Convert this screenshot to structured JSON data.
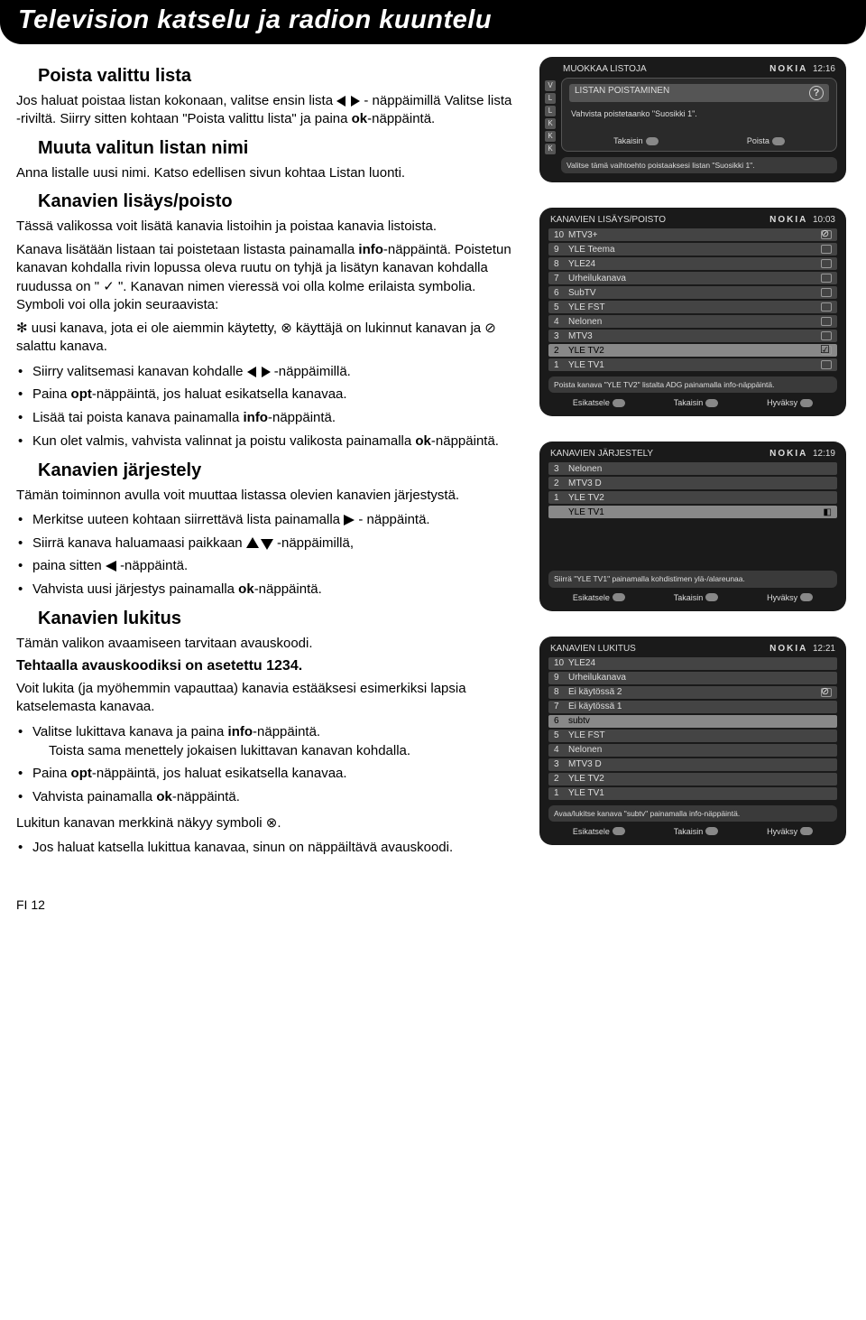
{
  "header": {
    "title": "Television katselu ja radion kuuntelu"
  },
  "s1": {
    "title": "Poista valittu lista",
    "p1a": "Jos haluat poistaa listan kokonaan, valitse ensin lista ",
    "p1b": " - näppäimillä Valitse lista -riviltä. Siirry sitten kohtaan \"Poista valittu lista\" ja paina ",
    "p1c": "-näppäintä."
  },
  "s2": {
    "title": "Muuta valitun listan nimi",
    "p1": "Anna listalle uusi nimi. Katso edellisen sivun kohtaa Listan luonti."
  },
  "s3": {
    "title": "Kanavien lisäys/poisto",
    "p1": "Tässä valikossa voit lisätä kanavia listoihin ja poistaa kanavia listoista.",
    "p2a": "Kanava lisätään listaan tai poistetaan listasta painamalla ",
    "p2b": "-näppäintä. Poistetun kanavan kohdalla rivin lopussa oleva ruutu on tyhjä ja lisätyn kanavan kohdalla ruudussa on \" ✓ \". Kanavan nimen vieressä voi olla kolme erilaista symbolia. Symboli voi olla jokin seuraavista:",
    "p3": "✻ uusi kanava, jota ei ole aiemmin käytetty, ⊗ käyttäjä on lukinnut kanavan ja ⊘ salattu kanava.",
    "b1a": "Siirry valitsemasi kanavan kohdalle ",
    "b1b": " -näppäimillä.",
    "b2a": "Paina ",
    "b2b": "-näppäintä, jos haluat esikatsella kanavaa.",
    "b3a": "Lisää tai poista kanava painamalla ",
    "b3b": "-näppäintä.",
    "b4a": "Kun olet valmis, vahvista valinnat ja poistu valikosta painamalla ",
    "b4b": "-näppäintä."
  },
  "s4": {
    "title": "Kanavien järjestely",
    "p1": "Tämän toiminnon avulla voit muuttaa listassa olevien kanavien järjestystä.",
    "b1a": "Merkitse uuteen kohtaan siirrettävä lista painamalla ",
    "b1b": " - näppäintä.",
    "b2a": "Siirrä kanava haluamaasi paikkaan ",
    "b2b": " -näppäimillä,",
    "b3a": "paina sitten ",
    "b3b": " -näppäintä.",
    "b4a": "Vahvista uusi järjestys painamalla ",
    "b4b": "-näppäintä."
  },
  "s5": {
    "title": "Kanavien lukitus",
    "p1": "Tämän valikon avaamiseen tarvitaan avauskoodi.",
    "factory": "Tehtaalla avauskoodiksi on asetettu 1234.",
    "p2": "Voit lukita (ja myöhemmin vapauttaa) kanavia estääksesi esimerkiksi lapsia katselemasta kanavaa.",
    "b1a": "Valitse lukittava kanava ja paina ",
    "b1b": "-näppäintä.",
    "b1sub": "Toista sama menettely jokaisen lukittavan kanavan kohdalla.",
    "b2a": "Paina ",
    "b2b": "-näppäintä, jos haluat esikatsella kanavaa.",
    "b3a": "Vahvista painamalla ",
    "b3b": "-näppäintä.",
    "p3": "Lukitun kanavan merkkinä näkyy symboli ⊗.",
    "b4": "Jos haluat katsella lukittua kanavaa, sinun on näppäiltävä avauskoodi."
  },
  "labels": {
    "ok": "ok",
    "opt": "opt",
    "info": "info"
  },
  "footer": {
    "page": "FI 12"
  },
  "sc1": {
    "top_left": "MUOKKAA LISTOJA",
    "brand": "NOKIA",
    "time": "12:16",
    "dlg_title": "LISTAN POISTAMINEN",
    "dlg_body": "Vahvista poistetaanko \"Suosikki 1\".",
    "btn_back": "Takaisin",
    "btn_del": "Poista",
    "hint": "Valitse tämä vaihtoehto poistaaksesi listan \"Suosikki 1\".",
    "tabs": [
      "V",
      "L",
      "L",
      "K",
      "K",
      "K"
    ]
  },
  "sc2": {
    "title": "KANAVIEN LISÄYS/POISTO",
    "brand": "NOKIA",
    "time": "10:03",
    "rows": [
      {
        "n": "10",
        "t": "MTV3+",
        "slot": "blocked"
      },
      {
        "n": "9",
        "t": "YLE Teema",
        "slot": ""
      },
      {
        "n": "8",
        "t": "YLE24",
        "slot": ""
      },
      {
        "n": "7",
        "t": "Urheilukanava",
        "slot": ""
      },
      {
        "n": "6",
        "t": "SubTV",
        "slot": ""
      },
      {
        "n": "5",
        "t": "YLE FST",
        "slot": ""
      },
      {
        "n": "4",
        "t": "Nelonen",
        "slot": ""
      },
      {
        "n": "3",
        "t": "MTV3",
        "slot": ""
      },
      {
        "n": "2",
        "t": "YLE TV2",
        "slot": "checked",
        "sel": true
      },
      {
        "n": "1",
        "t": "YLE TV1",
        "slot": ""
      }
    ],
    "hint": "Poista kanava \"YLE TV2\" listalta ADG painamalla info-näppäintä.",
    "btns": [
      "Esikatsele",
      "Takaisin",
      "Hyväksy"
    ]
  },
  "sc3": {
    "title": "KANAVIEN JÄRJESTELY",
    "brand": "NOKIA",
    "time": "12:19",
    "rows": [
      {
        "n": "3",
        "t": "Nelonen"
      },
      {
        "n": "2",
        "t": "MTV3 D"
      },
      {
        "n": "1",
        "t": "YLE TV2"
      },
      {
        "n": "",
        "t": "YLE TV1",
        "sel": true,
        "icon": true
      }
    ],
    "hint": "Siirrä \"YLE TV1\" painamalla kohdistimen ylä-/alareunaa.",
    "btns": [
      "Esikatsele",
      "Takaisin",
      "Hyväksy"
    ]
  },
  "sc4": {
    "title": "KANAVIEN LUKITUS",
    "brand": "NOKIA",
    "time": "12:21",
    "rows": [
      {
        "n": "10",
        "t": "YLE24"
      },
      {
        "n": "9",
        "t": "Urheilukanava"
      },
      {
        "n": "8",
        "t": "Ei käytössä 2",
        "slot": "blocked"
      },
      {
        "n": "7",
        "t": "Ei käytössä 1"
      },
      {
        "n": "6",
        "t": "subtv",
        "sel": true
      },
      {
        "n": "5",
        "t": "YLE FST"
      },
      {
        "n": "4",
        "t": "Nelonen"
      },
      {
        "n": "3",
        "t": "MTV3 D"
      },
      {
        "n": "2",
        "t": "YLE TV2"
      },
      {
        "n": "1",
        "t": "YLE TV1"
      }
    ],
    "hint": "Avaa/lukitse kanava \"subtv\" painamalla info-näppäintä.",
    "btns": [
      "Esikatsele",
      "Takaisin",
      "Hyväksy"
    ]
  }
}
